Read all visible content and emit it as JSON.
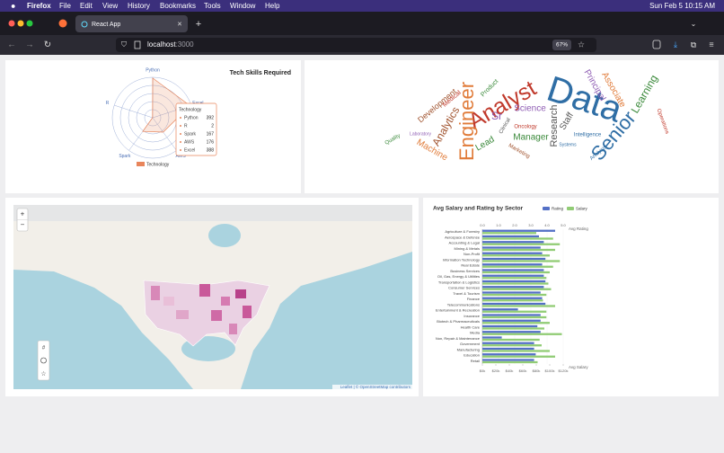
{
  "browser": {
    "menu": [
      "Firefox",
      "File",
      "Edit",
      "View",
      "History",
      "Bookmarks",
      "Tools",
      "Window",
      "Help"
    ],
    "clock": "Sun Feb 5  10:15 AM",
    "tab_title": "React App",
    "url_host": "localhost",
    "url_port": ":3000",
    "zoom": "67%"
  },
  "chart_data": [
    {
      "type": "radar",
      "title": "Tech Skills Required",
      "categories": [
        "Python",
        "R",
        "Spark",
        "AWS",
        "Excel"
      ],
      "series": [
        {
          "name": "Technology",
          "color": "#e8855b",
          "values": [
            392,
            2,
            167,
            176,
            388
          ]
        }
      ],
      "rlim": [
        0,
        400
      ]
    },
    {
      "type": "wordcloud",
      "words": [
        "Data",
        "Analyst",
        "Engineer",
        "Senior",
        "Science",
        "Research",
        "Manager",
        "Analytics",
        "Development",
        "Machine",
        "Learning",
        "Principal",
        "Associate",
        "Lead",
        "Staff",
        "Intelligence",
        "Medical",
        "Laboratory",
        "Clinical",
        "Marketing",
        "Oncology",
        "Systems",
        "Analysis",
        "Product",
        "Quality",
        "Operations",
        "Sr"
      ]
    },
    {
      "type": "bar",
      "orientation": "horizontal",
      "title": "Avg Salary and Rating by Sector",
      "categories": [
        "Agriculture & Forestry",
        "Aerospace & Defense",
        "Accounting & Legal",
        "Mining & Metals",
        "Non-Profit",
        "Information Technology",
        "Real Estate",
        "Business Services",
        "Oil, Gas, Energy & Utilities",
        "Transportation & Logistics",
        "Consumer Services",
        "Travel & Tourism",
        "Finance",
        "Telecommunications",
        "Entertainment & Recreation",
        "Insurance",
        "Biotech & Pharmaceuticals",
        "Health Care",
        "Media",
        "Non, Repair & Maintenance",
        "Government",
        "Manufacturing",
        "Education",
        "Retail"
      ],
      "series": [
        {
          "name": "Rating",
          "color": "#5470c6",
          "axis": "x",
          "values": [
            4.5,
            3.5,
            3.8,
            3.6,
            3.7,
            3.9,
            3.7,
            3.8,
            3.8,
            3.9,
            3.8,
            3.6,
            3.7,
            3.9,
            2.2,
            3.6,
            3.6,
            3.4,
            3.6,
            1.2,
            3.2,
            3.2,
            3.3,
            3.2
          ]
        },
        {
          "name": "Salary",
          "color": "#91cc75",
          "axis": "x2",
          "values": [
            80000,
            105000,
            115000,
            108000,
            100000,
            115000,
            105000,
            100000,
            95000,
            98000,
            102000,
            95000,
            90000,
            108000,
            95000,
            95000,
            100000,
            92000,
            118000,
            85000,
            88000,
            100000,
            108000,
            82000
          ]
        }
      ],
      "xlabel": "Avg Rating",
      "xlim": [
        0,
        5
      ],
      "xticks": [
        {
          "value": 0,
          "label": "0.0"
        },
        {
          "value": 1,
          "label": "1.0"
        },
        {
          "value": 2,
          "label": "2.0"
        },
        {
          "value": 3,
          "label": "3.0"
        },
        {
          "value": 4,
          "label": "4.0"
        },
        {
          "value": 5,
          "label": "5.0"
        }
      ],
      "x2label": "Avg Salary",
      "x2lim": [
        0,
        120000
      ],
      "x2ticks": [
        {
          "value": 0,
          "label": "$0k"
        },
        {
          "value": 20000,
          "label": "$20k"
        },
        {
          "value": 40000,
          "label": "$40k"
        },
        {
          "value": 60000,
          "label": "$60k"
        },
        {
          "value": 80000,
          "label": "$80k"
        },
        {
          "value": 100000,
          "label": "$100k"
        },
        {
          "value": 120000,
          "label": "$120k"
        }
      ]
    }
  ],
  "map": {
    "zoom_in": "+",
    "zoom_out": "−",
    "attribution": "Leaflet | © OpenStreetMap contributors"
  }
}
